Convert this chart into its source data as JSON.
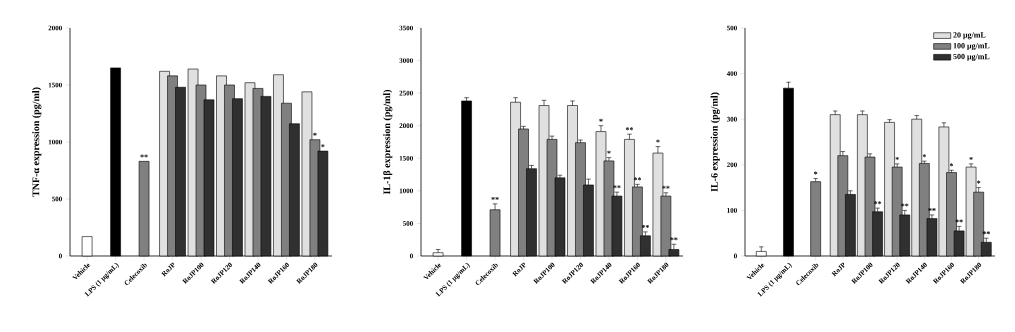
{
  "chart_data": [
    {
      "type": "bar",
      "ylabel": "TNF-α expression (pg/ml)",
      "categories": [
        "Vehicle",
        "LPS (1 μg/mL)",
        "Celecoxib",
        "RoJP",
        "RoJP100",
        "RoJP120",
        "RoJP140",
        "RoJP160",
        "RoJP180"
      ],
      "ylim": [
        0,
        2000
      ],
      "yticks": [
        0,
        500,
        1000,
        1500,
        2000
      ],
      "series": [
        {
          "colors": [
            "#ffffff",
            "#000000",
            "#808080",
            null,
            null,
            null,
            null,
            null,
            null
          ],
          "values": [
            170,
            1650,
            830,
            null,
            null,
            null,
            null,
            null,
            null
          ],
          "value_labels": [
            null,
            null,
            "**",
            null,
            null,
            null,
            null,
            null,
            null
          ]
        },
        {
          "color": "#e0e0e0",
          "values": [
            null,
            null,
            null,
            1620,
            1640,
            1580,
            1520,
            1590,
            1440
          ]
        },
        {
          "color": "#808080",
          "values": [
            null,
            null,
            null,
            1580,
            1500,
            1500,
            1470,
            1340,
            1020
          ],
          "value_labels": [
            null,
            null,
            null,
            null,
            null,
            null,
            null,
            null,
            "*"
          ]
        },
        {
          "color": "#303030",
          "values": [
            null,
            null,
            null,
            1480,
            1370,
            1380,
            1400,
            1160,
            920
          ],
          "value_labels": [
            null,
            null,
            null,
            null,
            null,
            null,
            null,
            null,
            "*"
          ]
        }
      ]
    },
    {
      "type": "bar",
      "ylabel": "IL-1β expression (pg/ml)",
      "categories": [
        "Vehicle",
        "LPS (1 μg/mL)",
        "Celecoxib",
        "RoJP",
        "RoJP100",
        "RoJP120",
        "RoJP140",
        "RoJP160",
        "RoJP180"
      ],
      "ylim": [
        0,
        3500
      ],
      "yticks": [
        0,
        500,
        1000,
        1500,
        2000,
        2500,
        3000,
        3500
      ],
      "series": [
        {
          "colors": [
            "#ffffff",
            "#000000",
            "#808080",
            null,
            null,
            null,
            null,
            null,
            null
          ],
          "values": [
            50,
            2380,
            710,
            null,
            null,
            null,
            null,
            null,
            null
          ],
          "errors": [
            50,
            50,
            90,
            null,
            null,
            null,
            null,
            null,
            null
          ],
          "value_labels": [
            null,
            null,
            "**",
            null,
            null,
            null,
            null,
            null,
            null
          ]
        },
        {
          "color": "#e0e0e0",
          "values": [
            null,
            null,
            null,
            2360,
            2310,
            2310,
            1910,
            1790,
            1580
          ],
          "errors": [
            null,
            null,
            null,
            70,
            80,
            70,
            90,
            80,
            100
          ],
          "value_labels": [
            null,
            null,
            null,
            null,
            null,
            null,
            "*",
            "**",
            "*"
          ]
        },
        {
          "color": "#808080",
          "values": [
            null,
            null,
            null,
            1950,
            1790,
            1740,
            1460,
            1060,
            920
          ],
          "errors": [
            null,
            null,
            null,
            40,
            50,
            40,
            50,
            40,
            50
          ],
          "value_labels": [
            null,
            null,
            null,
            null,
            null,
            null,
            "*",
            "**",
            "**"
          ]
        },
        {
          "color": "#303030",
          "values": [
            null,
            null,
            null,
            1340,
            1200,
            1090,
            920,
            310,
            100
          ],
          "errors": [
            null,
            null,
            null,
            50,
            40,
            90,
            60,
            60,
            80
          ],
          "value_labels": [
            null,
            null,
            null,
            null,
            null,
            null,
            "**",
            "**",
            "**"
          ]
        }
      ]
    },
    {
      "type": "bar",
      "ylabel": "IL-6 expression (pg/ml)",
      "categories": [
        "Vehicle",
        "LPS (1 μg/mL)",
        "Celecoxib",
        "RoJP",
        "RoJP100",
        "RoJP120",
        "RoJP140",
        "RoJP160",
        "RoJP180"
      ],
      "ylim": [
        0,
        500
      ],
      "yticks": [
        0,
        100,
        200,
        300,
        400,
        500
      ],
      "legend": "top right",
      "series": [
        {
          "colors": [
            "#ffffff",
            "#000000",
            "#808080",
            null,
            null,
            null,
            null,
            null,
            null
          ],
          "values": [
            10,
            368,
            163,
            null,
            null,
            null,
            null,
            null,
            null
          ],
          "errors": [
            10,
            13,
            7,
            null,
            null,
            null,
            null,
            null,
            null
          ],
          "value_labels": [
            null,
            null,
            "*",
            null,
            null,
            null,
            null,
            null,
            null
          ]
        },
        {
          "name": "20 μg/mL",
          "color": "#e0e0e0",
          "values": [
            null,
            null,
            null,
            310,
            310,
            293,
            300,
            283,
            195
          ],
          "errors": [
            null,
            null,
            null,
            8,
            8,
            6,
            8,
            9,
            7
          ],
          "value_labels": [
            null,
            null,
            null,
            null,
            null,
            null,
            null,
            null,
            "*"
          ]
        },
        {
          "name": "100 μg/mL",
          "color": "#808080",
          "values": [
            null,
            null,
            null,
            220,
            217,
            195,
            203,
            183,
            140
          ],
          "errors": [
            null,
            null,
            null,
            9,
            7,
            7,
            5,
            5,
            10
          ],
          "value_labels": [
            null,
            null,
            null,
            null,
            null,
            "*",
            "*",
            "*",
            "*"
          ]
        },
        {
          "name": "500 μg/mL",
          "color": "#303030",
          "values": [
            null,
            null,
            null,
            135,
            97,
            90,
            82,
            55,
            30
          ],
          "errors": [
            null,
            null,
            null,
            8,
            8,
            10,
            8,
            10,
            9
          ],
          "value_labels": [
            null,
            null,
            null,
            null,
            "**",
            "**",
            "**",
            "**",
            "**"
          ]
        }
      ]
    }
  ]
}
